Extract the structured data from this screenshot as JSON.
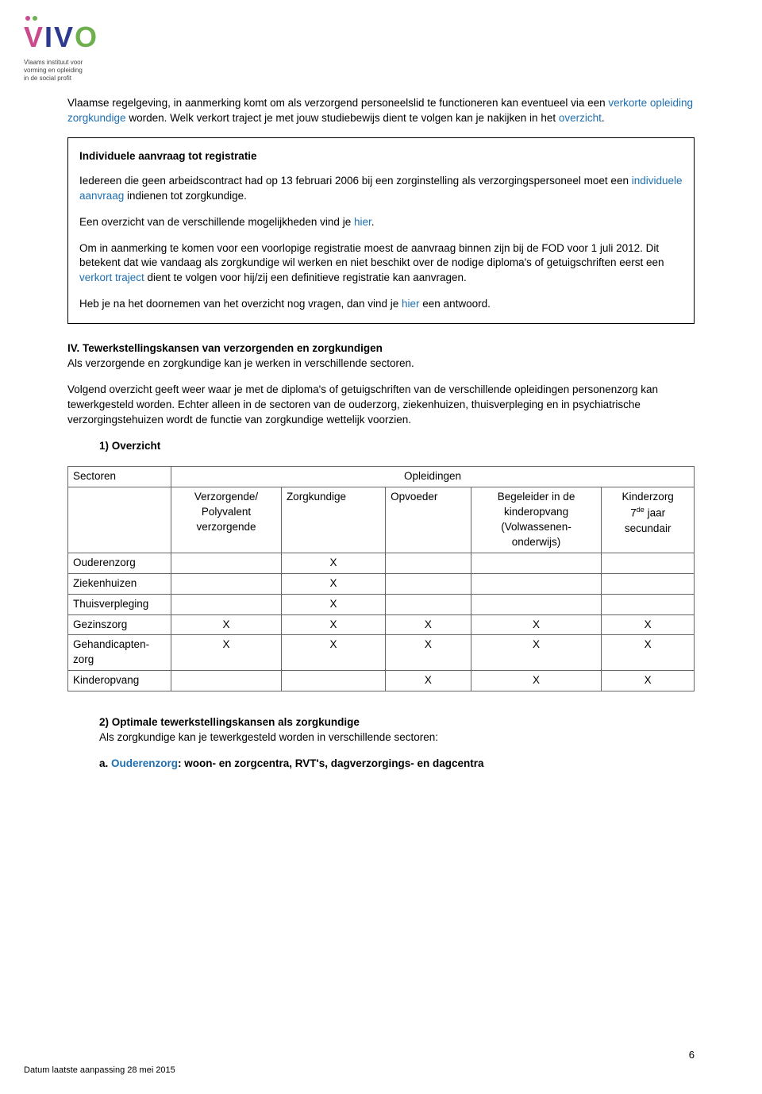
{
  "logo": {
    "sub_line1": "Vlaams instituut voor",
    "sub_line2": "vorming en opleiding",
    "sub_line3": "in de social profit"
  },
  "intro": {
    "p1_a": "Vlaamse regelgeving, in aanmerking komt om als verzorgend personeelslid te functioneren kan eventueel via een ",
    "p1_link": "verkorte opleiding zorgkundige",
    "p1_b": " worden. Welk verkort traject je met jouw studiebewijs dient te volgen kan je nakijken in het ",
    "p1_link2": "overzicht",
    "p1_c": "."
  },
  "box": {
    "title": "Individuele aanvraag tot registratie",
    "p1_a": "Iedereen die geen arbeidscontract had op 13 februari 2006 bij een zorginstelling als verzorgingspersoneel moet een ",
    "p1_link": "individuele aanvraag",
    "p1_b": " indienen tot zorgkundige.",
    "p2_a": "Een overzicht van de verschillende mogelijkheden vind je ",
    "p2_link": "hier",
    "p2_b": ".",
    "p3_a": "Om in aanmerking te komen voor een voorlopige registratie moest de aanvraag binnen zijn bij de FOD voor 1 juli 2012. Dit betekent dat wie vandaag als zorgkundige wil werken en niet beschikt over de nodige diploma's of getuigschriften eerst een ",
    "p3_link": "verkort traject",
    "p3_b": " dient te volgen voor hij/zij een definitieve registratie kan aanvragen.",
    "p4_a": "Heb je na het doornemen van het overzicht nog vragen, dan vind je ",
    "p4_link": "hier",
    "p4_b": " een antwoord."
  },
  "section4": {
    "heading": "IV. Tewerkstellingskansen van verzorgenden en zorgkundigen",
    "p1": "Als verzorgende en zorgkundige kan je werken in verschillende sectoren.",
    "p2": "Volgend overzicht geeft weer waar je met de diploma's of getuigschriften van de verschillende opleidingen personenzorg kan tewerkgesteld worden. Echter alleen in de sectoren van de ouderzorg, ziekenhuizen, thuisverpleging en in psychiatrische verzorgingstehuizen wordt de functie van zorgkundige wettelijk voorzien.",
    "list1": "1)  Overzicht"
  },
  "table": {
    "header_sectoren": "Sectoren",
    "header_opleidingen": "Opleidingen",
    "cols": [
      "Verzorgende/\nPolyvalent\nverzorgende",
      "Zorgkundige",
      "Opvoeder",
      "Begeleider in de\nkinderopvang\n(Volwassenen-\nonderwijs)",
      "Kinderzorg\n7de jaar\nsecundair"
    ],
    "rows": [
      {
        "sector": "Ouderenzorg",
        "cells": [
          "",
          "X",
          "",
          "",
          ""
        ]
      },
      {
        "sector": "Ziekenhuizen",
        "cells": [
          "",
          "X",
          "",
          "",
          ""
        ]
      },
      {
        "sector": "Thuisverpleging",
        "cells": [
          "",
          "X",
          "",
          "",
          ""
        ]
      },
      {
        "sector": "Gezinszorg",
        "cells": [
          "X",
          "X",
          "X",
          "X",
          "X"
        ]
      },
      {
        "sector": "Gehandicapten-\nzorg",
        "cells": [
          "X",
          "X",
          "X",
          "X",
          "X"
        ]
      },
      {
        "sector": "Kinderopvang",
        "cells": [
          "",
          "",
          "X",
          "X",
          "X"
        ]
      }
    ]
  },
  "section4b": {
    "title": "2) Optimale tewerkstellingskansen als zorgkundige",
    "p1": "Als zorgkundige kan je tewerkgesteld worden in verschillende sectoren:",
    "a_prefix": "a. ",
    "a_link": "Ouderenzorg",
    "a_rest": ": woon- en zorgcentra, RVT's, dagverzorgings- en dagcentra"
  },
  "footer": {
    "date_text": "Datum laatste aanpassing 28 mei 2015",
    "page_num": "6"
  }
}
